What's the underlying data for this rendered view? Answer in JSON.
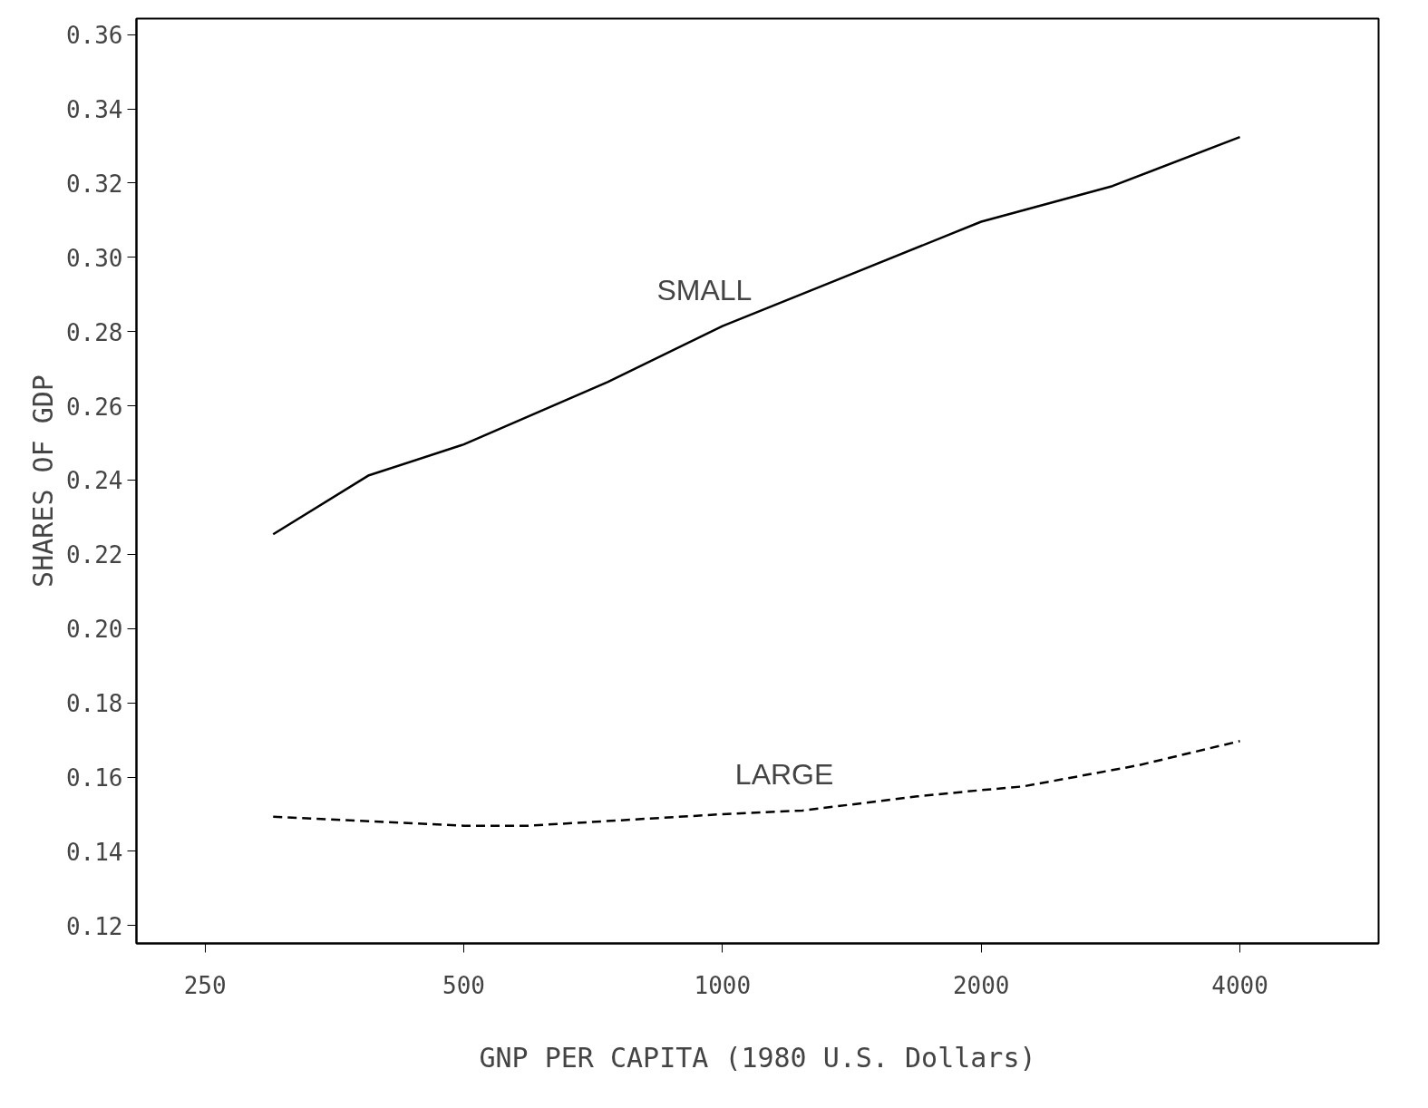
{
  "chart_data": {
    "type": "line",
    "xlabel": "GNP PER CAPITA (1980 U.S. Dollars)",
    "ylabel": "SHARES OF GDP",
    "log": "x",
    "grid": false,
    "marker": "none",
    "xlim": [
      208,
      5800
    ],
    "xticks": [
      250,
      500,
      1000,
      2000,
      4000
    ],
    "ylim": [
      0.1152,
      0.3643
    ],
    "yticks": [
      {
        "value": 0.12,
        "label": "0.12"
      },
      {
        "value": 0.14,
        "label": "0.14"
      },
      {
        "value": 0.16,
        "label": "0.16"
      },
      {
        "value": 0.18,
        "label": "0.18"
      },
      {
        "value": 0.2,
        "label": "0.20"
      },
      {
        "value": 0.22,
        "label": "0.22"
      },
      {
        "value": 0.24,
        "label": "0.24"
      },
      {
        "value": 0.26,
        "label": "0.26"
      },
      {
        "value": 0.28,
        "label": "0.28"
      },
      {
        "value": 0.3,
        "label": "0.30"
      },
      {
        "value": 0.32,
        "label": "0.32"
      },
      {
        "value": 0.34,
        "label": "0.34"
      },
      {
        "value": 0.36,
        "label": "0.36"
      }
    ],
    "series": [
      {
        "name": "SMALL",
        "color": "#000000",
        "line_style": "solid",
        "x": [
          300,
          387,
          500,
          735,
          1000,
          1362,
          2000,
          2843,
          4000
        ],
        "values": [
          0.2254,
          0.2412,
          0.2496,
          0.2664,
          0.2815,
          0.294,
          0.3096,
          0.3192,
          0.3324
        ]
      },
      {
        "name": "LARGE",
        "color": "#000000",
        "line_style": "dashed",
        "x": [
          300,
          500,
          594,
          1000,
          1239,
          1685,
          2000,
          2240,
          3050,
          4000
        ],
        "values": [
          0.1493,
          0.1469,
          0.1469,
          0.15,
          0.151,
          0.1548,
          0.1565,
          0.1575,
          0.1632,
          0.1697
        ]
      }
    ]
  }
}
